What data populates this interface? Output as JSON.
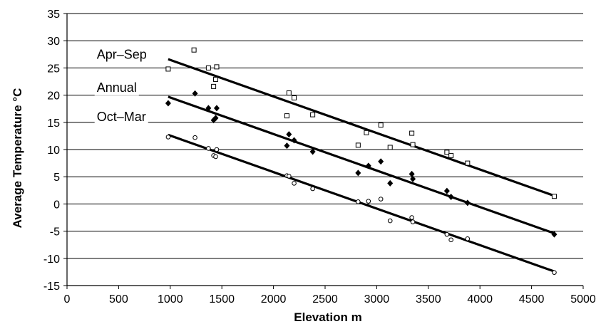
{
  "chart_data": {
    "type": "scatter",
    "xlabel": "Elevation m",
    "ylabel": "Average Temperature °C",
    "xlim": [
      0,
      5000
    ],
    "ylim": [
      -15,
      35
    ],
    "xticks": [
      0,
      500,
      1000,
      1500,
      2000,
      2500,
      3000,
      3500,
      4000,
      4500,
      5000
    ],
    "yticks": [
      -15,
      -10,
      -5,
      0,
      5,
      10,
      15,
      20,
      25,
      30,
      35
    ],
    "grid": "horizontal",
    "legend": "none",
    "series": [
      {
        "name": "Apr–Sep",
        "marker": "open-square",
        "points": [
          [
            980,
            24.8
          ],
          [
            1230,
            28.3
          ],
          [
            1370,
            25.0
          ],
          [
            1420,
            21.6
          ],
          [
            1440,
            22.9
          ],
          [
            1450,
            25.2
          ],
          [
            2130,
            16.2
          ],
          [
            2150,
            20.4
          ],
          [
            2200,
            19.5
          ],
          [
            2380,
            16.4
          ],
          [
            2820,
            10.8
          ],
          [
            2900,
            13.1
          ],
          [
            3040,
            14.5
          ],
          [
            3130,
            10.4
          ],
          [
            3340,
            13.0
          ],
          [
            3350,
            10.9
          ],
          [
            3680,
            9.5
          ],
          [
            3720,
            8.9
          ],
          [
            3880,
            7.5
          ],
          [
            4720,
            1.4
          ]
        ],
        "trend": [
          [
            980,
            26.6
          ],
          [
            4720,
            1.5
          ]
        ]
      },
      {
        "name": "Annual",
        "marker": "filled-diamond",
        "points": [
          [
            980,
            18.5
          ],
          [
            1240,
            20.3
          ],
          [
            1370,
            17.6
          ],
          [
            1420,
            15.4
          ],
          [
            1440,
            15.8
          ],
          [
            1450,
            17.6
          ],
          [
            2130,
            10.7
          ],
          [
            2150,
            12.8
          ],
          [
            2200,
            11.7
          ],
          [
            2380,
            9.6
          ],
          [
            2820,
            5.7
          ],
          [
            2920,
            7.0
          ],
          [
            3040,
            7.8
          ],
          [
            3130,
            3.8
          ],
          [
            3340,
            5.5
          ],
          [
            3350,
            4.6
          ],
          [
            3680,
            2.4
          ],
          [
            3720,
            1.3
          ],
          [
            3880,
            0.2
          ],
          [
            4720,
            -5.6
          ]
        ],
        "trend": [
          [
            980,
            19.7
          ],
          [
            4720,
            -5.4
          ]
        ]
      },
      {
        "name": "Oct–Mar",
        "marker": "open-circle",
        "points": [
          [
            980,
            12.3
          ],
          [
            1240,
            12.2
          ],
          [
            1370,
            10.2
          ],
          [
            1420,
            8.9
          ],
          [
            1440,
            8.7
          ],
          [
            1450,
            10.0
          ],
          [
            2130,
            5.2
          ],
          [
            2150,
            5.1
          ],
          [
            2200,
            3.8
          ],
          [
            2380,
            2.8
          ],
          [
            2820,
            0.4
          ],
          [
            2920,
            0.5
          ],
          [
            3040,
            0.9
          ],
          [
            3130,
            -3.1
          ],
          [
            3340,
            -2.5
          ],
          [
            3350,
            -3.3
          ],
          [
            3680,
            -5.6
          ],
          [
            3720,
            -6.6
          ],
          [
            3880,
            -6.4
          ],
          [
            4720,
            -12.6
          ]
        ],
        "trend": [
          [
            980,
            12.7
          ],
          [
            4720,
            -12.4
          ]
        ]
      }
    ],
    "series_labels": [
      {
        "text": "Apr–Sep",
        "x": 150,
        "y": 27.5
      },
      {
        "text": "Annual",
        "x": 150,
        "y": 21.4
      },
      {
        "text": "Oct–Mar",
        "x": 150,
        "y": 16.0
      }
    ]
  }
}
